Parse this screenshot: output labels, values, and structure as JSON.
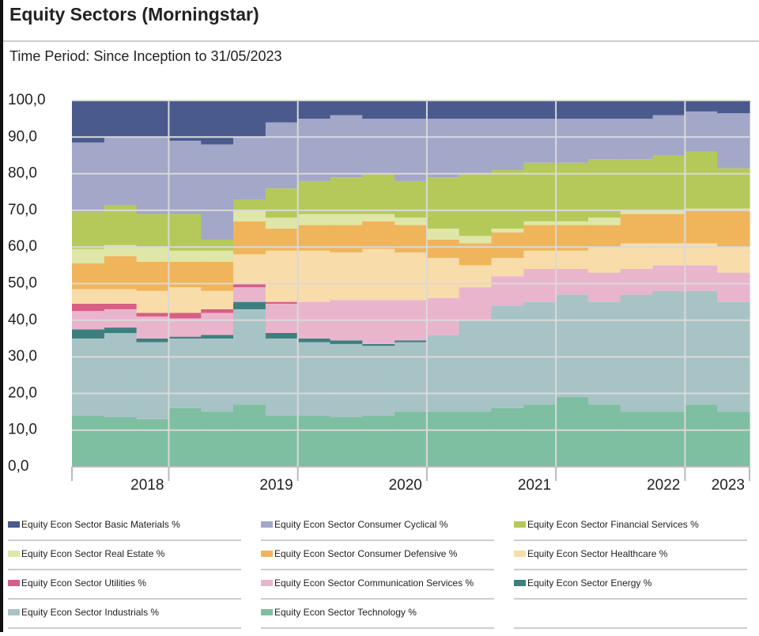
{
  "chart_data": {
    "type": "stacked-step-area",
    "title": "Equity Sectors (Morningstar)",
    "subtitle": "Time Period: Since Inception to 31/05/2023",
    "categories": [
      null,
      null,
      "2018",
      null,
      null,
      null,
      "2019",
      null,
      null,
      null,
      "2020",
      null,
      null,
      null,
      "2021",
      null,
      null,
      null,
      "2022",
      null,
      "2023"
    ],
    "ylim": [
      0,
      100
    ],
    "yticks": [
      {
        "value": 0,
        "label": "0,0"
      },
      {
        "value": 10,
        "label": "10,0"
      },
      {
        "value": 20,
        "label": "20,0"
      },
      {
        "value": 30,
        "label": "30,0"
      },
      {
        "value": 40,
        "label": "40,0"
      },
      {
        "value": 50,
        "label": "50,0"
      },
      {
        "value": 60,
        "label": "60,0"
      },
      {
        "value": 70,
        "label": "70,0"
      },
      {
        "value": 80,
        "label": "80,0"
      },
      {
        "value": 90,
        "label": "90,0"
      },
      {
        "value": 100,
        "label": "100,0"
      }
    ],
    "grid": true,
    "series": [
      {
        "name": "Equity Econ Sector Basic Materials %",
        "color": "#4a5a8c",
        "values": [
          11.5,
          10,
          10,
          11,
          12,
          10,
          6,
          5,
          4,
          5,
          5,
          5,
          5,
          5,
          5,
          5,
          5,
          5,
          4,
          3,
          3.5
        ]
      },
      {
        "name": "Equity Econ Sector Consumer Cyclical %",
        "color": "#a3a7c8",
        "values": [
          19,
          18.5,
          21,
          20,
          26,
          17,
          18,
          17,
          17,
          15,
          17,
          16,
          15,
          14,
          12,
          12,
          11,
          11,
          11,
          11,
          15
        ]
      },
      {
        "name": "Equity Econ Sector Financial Services %",
        "color": "#b5c95a",
        "values": [
          10,
          11,
          9,
          10,
          3,
          3,
          8,
          9,
          10,
          11,
          10,
          14,
          17,
          16,
          16,
          16,
          16,
          14,
          15,
          15.5,
          11
        ]
      },
      {
        "name": "Equity Econ Sector Real Estate %",
        "color": "#dfe6a8",
        "values": [
          4,
          3,
          4,
          3,
          3,
          3,
          3,
          3,
          3,
          2,
          2,
          3,
          2,
          1,
          1,
          1,
          2,
          1,
          1,
          0.5,
          0.5
        ]
      },
      {
        "name": "Equity Econ Sector Consumer Defensive %",
        "color": "#f0b55a",
        "values": [
          7,
          9,
          8,
          7,
          8,
          9,
          6,
          7,
          7.5,
          7.5,
          7.5,
          5,
          6,
          7,
          7,
          7,
          6,
          8,
          8,
          9,
          10
        ]
      },
      {
        "name": "Equity Econ Sector Healthcare %",
        "color": "#f8dcaa",
        "values": [
          4,
          4,
          6,
          7,
          5,
          8,
          14,
          14,
          13,
          14,
          13,
          11,
          6,
          5,
          5,
          5,
          7,
          7,
          6,
          6,
          7
        ]
      },
      {
        "name": "Equity Econ Sector Utilities %",
        "color": "#d65f84",
        "values": [
          2,
          1.5,
          1,
          1.5,
          1,
          1,
          0.5,
          0,
          0,
          0,
          0,
          0,
          0,
          0,
          0,
          0,
          0,
          0,
          0,
          0,
          0
        ]
      },
      {
        "name": "Equity Econ Sector Communication Services %",
        "color": "#e9b5cd",
        "values": [
          5,
          5,
          6,
          5,
          6,
          4,
          8,
          10,
          11,
          12,
          11,
          10,
          9,
          8,
          9,
          7,
          8,
          7,
          7,
          7,
          8
        ]
      },
      {
        "name": "Equity Econ Sector Energy %",
        "color": "#3d7f7f",
        "values": [
          2.5,
          1.5,
          1,
          0.5,
          1,
          2,
          1.5,
          1,
          1,
          0.5,
          0.5,
          0,
          0,
          0,
          0,
          0,
          0,
          0,
          0,
          0,
          0
        ]
      },
      {
        "name": "Equity Econ Sector Industrials %",
        "color": "#a7c3c6",
        "values": [
          21,
          23,
          21,
          19,
          20,
          26,
          21,
          20,
          20,
          19,
          19,
          21,
          25,
          28,
          28,
          28,
          28,
          32,
          33,
          31,
          30
        ]
      },
      {
        "name": "Equity Econ Sector Technology %",
        "color": "#7dbfa0",
        "values": [
          14,
          13.5,
          13,
          16,
          15,
          17,
          14,
          14,
          13.5,
          14,
          15,
          15,
          15,
          16,
          17,
          19,
          17,
          15,
          15,
          17,
          15
        ]
      }
    ]
  }
}
